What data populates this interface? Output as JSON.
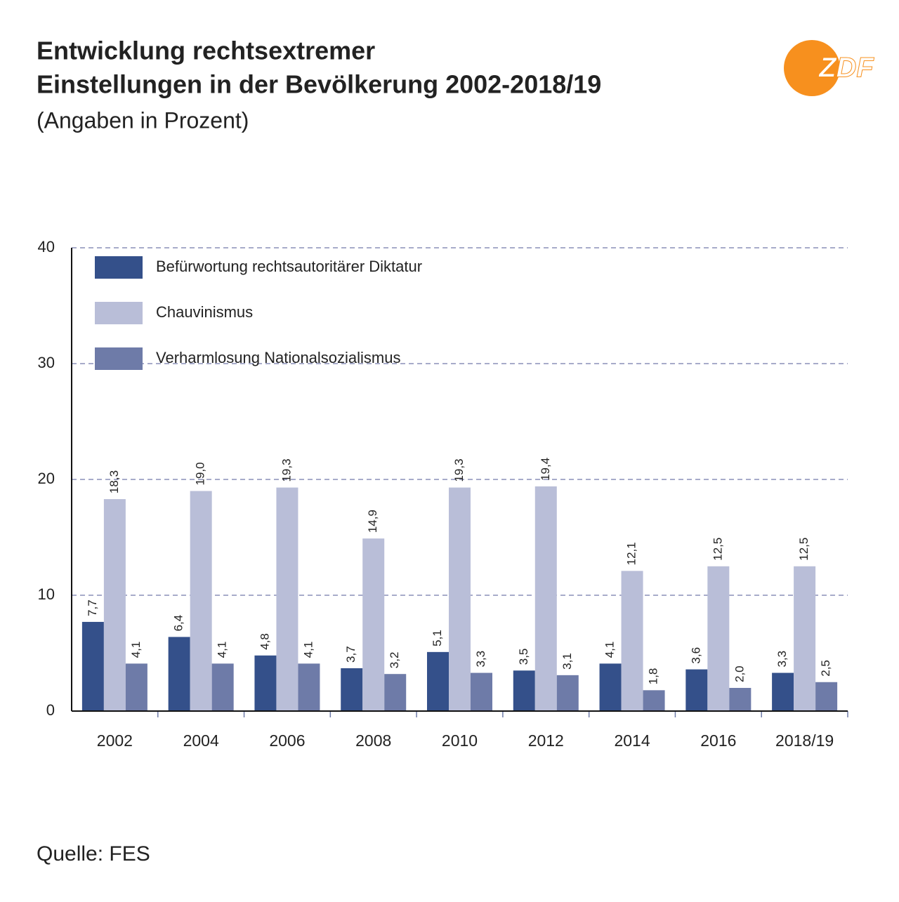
{
  "title": [
    "Entwicklung rechtsextremer",
    "Einstellungen in der Bevölkerung 2002-2018/19"
  ],
  "subtitle": "(Angaben in Prozent)",
  "source": "Quelle: FES",
  "logo": "ZDF",
  "chart_data": {
    "type": "bar",
    "categories": [
      "2002",
      "2004",
      "2006",
      "2008",
      "2010",
      "2012",
      "2014",
      "2016",
      "2018/19"
    ],
    "series": [
      {
        "name": "Befürwortung rechtsautoritärer Diktatur",
        "color": "#34508a",
        "values": [
          7.7,
          6.4,
          4.8,
          3.7,
          5.1,
          3.5,
          4.1,
          3.6,
          3.3
        ],
        "value_labels": [
          "7,7",
          "6,4",
          "4,8",
          "3,7",
          "5,1",
          "3,5",
          "4,1",
          "3,6",
          "3,3"
        ]
      },
      {
        "name": "Chauvinismus",
        "color": "#b9bed8",
        "values": [
          18.3,
          19.0,
          19.3,
          14.9,
          19.3,
          19.4,
          12.1,
          12.5,
          12.5
        ],
        "value_labels": [
          "18,3",
          "19,0",
          "19,3",
          "14,9",
          "19,3",
          "19,4",
          "12,1",
          "12,5",
          "12,5"
        ]
      },
      {
        "name": "Verharmlosung Nationalsozialismus",
        "color": "#6e7ba8",
        "values": [
          4.1,
          4.1,
          4.1,
          3.2,
          3.3,
          3.1,
          1.8,
          2.0,
          2.5
        ],
        "value_labels": [
          "4,1",
          "4,1",
          "4,1",
          "3,2",
          "3,3",
          "3,1",
          "1,8",
          "2,0",
          "2,5"
        ]
      }
    ],
    "ylim": [
      0,
      40
    ],
    "yticks": [
      0,
      10,
      20,
      30,
      40
    ],
    "grid": true,
    "legend": "top-left"
  }
}
